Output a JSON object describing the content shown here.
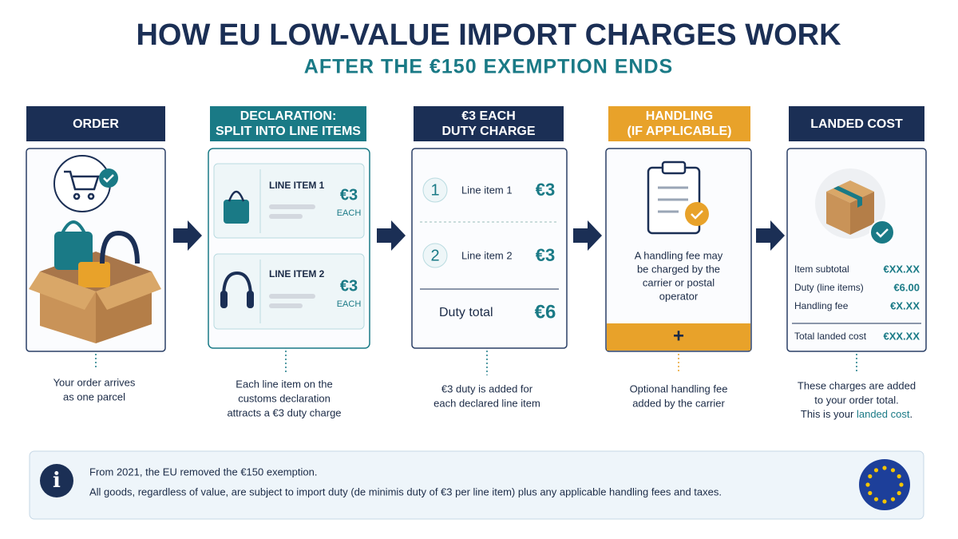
{
  "header": {
    "title": "HOW EU LOW-VALUE IMPORT CHARGES WORK",
    "subtitle": "AFTER THE €150 EXEMPTION ENDS"
  },
  "steps": [
    {
      "heading": [
        "ORDER"
      ],
      "caption": [
        "Your order arrives",
        "as one parcel"
      ]
    },
    {
      "heading": [
        "DECLARATION:",
        "SPLIT INTO LINE ITEMS"
      ],
      "items": [
        {
          "label": "LINE ITEM 1",
          "amount": "€3",
          "unit": "EACH"
        },
        {
          "label": "LINE ITEM 2",
          "amount": "€3",
          "unit": "EACH"
        }
      ],
      "caption": [
        "Each line item on the",
        "customs declaration",
        "attracts a €3 duty charge"
      ]
    },
    {
      "heading": [
        "€3 EACH",
        "DUTY CHARGE"
      ],
      "rows": [
        {
          "number": "1",
          "label": "Line item 1",
          "amount": "€3"
        },
        {
          "number": "2",
          "label": "Line item 2",
          "amount": "€3"
        }
      ],
      "total": {
        "label": "Duty total",
        "amount": "€6"
      },
      "caption": [
        "€3 duty is added for",
        "each declared line item"
      ]
    },
    {
      "heading": [
        "HANDLING",
        "(IF APPLICABLE)"
      ],
      "text": [
        "A handling fee may",
        "be charged by the",
        "carrier or postal",
        "operator"
      ],
      "symbol": "+",
      "caption": [
        "Optional handling fee",
        "added by the carrier"
      ]
    },
    {
      "heading": [
        "LANDED COST"
      ],
      "rows": [
        {
          "label": "Item subtotal",
          "amount": "€XX.XX"
        },
        {
          "label": "Duty (line items)",
          "amount": "€6.00"
        },
        {
          "label": "Handling fee",
          "amount": "€X.XX"
        }
      ],
      "total": {
        "label": "Total landed cost",
        "amount": "€XX.XX"
      },
      "caption": [
        "These charges are added",
        "to your order total."
      ],
      "caption_end": [
        "This is your ",
        "landed cost",
        "."
      ]
    }
  ],
  "note": {
    "icon": "i",
    "lines": [
      "From 2021, the EU removed the €150 exemption.",
      "All goods, regardless of value, are subject to import duty (de minimis duty of €3 per line item) plus any applicable handling fees and taxes."
    ]
  }
}
